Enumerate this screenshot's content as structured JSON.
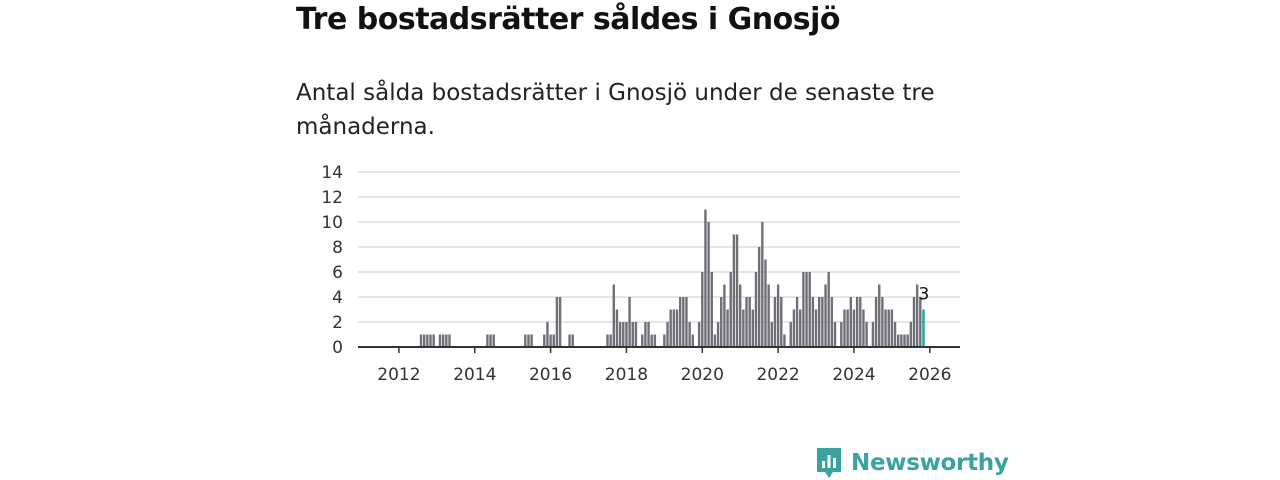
{
  "title": "Tre bostadsrätter såldes i Gnosjö",
  "subtitle": "Antal sålda bostadsrätter i Gnosjö under de senaste tre månaderna.",
  "brand": {
    "name": "Newsworthy",
    "color": "#3aa3a0"
  },
  "colors": {
    "bar": "#6f6f78",
    "highlight": "#19a39a",
    "grid": "#dddddd",
    "axis": "#333333"
  },
  "chart_data": {
    "type": "bar",
    "title": "Tre bostadsrätter såldes i Gnosjö",
    "xlabel": "",
    "ylabel": "",
    "ylim": [
      0,
      14
    ],
    "yticks": [
      0,
      2,
      4,
      6,
      8,
      10,
      12,
      14
    ],
    "xticks": [
      2012,
      2014,
      2016,
      2018,
      2020,
      2022,
      2024,
      2026
    ],
    "start": "2011-01",
    "frequency": "monthly",
    "values": [
      0,
      0,
      0,
      0,
      0,
      0,
      0,
      0,
      0,
      0,
      0,
      0,
      0,
      0,
      0,
      0,
      0,
      0,
      0,
      1,
      1,
      1,
      1,
      1,
      0,
      1,
      1,
      1,
      1,
      0,
      0,
      0,
      0,
      0,
      0,
      0,
      0,
      0,
      0,
      0,
      1,
      1,
      1,
      0,
      0,
      0,
      0,
      0,
      0,
      0,
      0,
      0,
      1,
      1,
      1,
      0,
      0,
      0,
      1,
      2,
      1,
      1,
      4,
      4,
      0,
      0,
      1,
      1,
      0,
      0,
      0,
      0,
      0,
      0,
      0,
      0,
      0,
      0,
      1,
      1,
      5,
      3,
      2,
      2,
      2,
      4,
      2,
      2,
      0,
      1,
      2,
      2,
      1,
      1,
      0,
      0,
      1,
      2,
      3,
      3,
      3,
      4,
      4,
      4,
      2,
      1,
      0,
      2,
      6,
      11,
      10,
      6,
      1,
      2,
      4,
      5,
      3,
      6,
      9,
      9,
      5,
      3,
      4,
      4,
      3,
      6,
      8,
      10,
      7,
      5,
      2,
      4,
      5,
      4,
      1,
      0,
      2,
      3,
      4,
      3,
      6,
      6,
      6,
      4,
      3,
      4,
      4,
      5,
      6,
      4,
      2,
      0,
      2,
      3,
      3,
      4,
      3,
      4,
      4,
      3,
      2,
      0,
      2,
      4,
      5,
      4,
      3,
      3,
      3,
      2,
      1,
      1,
      1,
      1,
      2,
      4,
      5,
      4,
      3
    ],
    "highlight_last": true,
    "last_value_label": "3"
  }
}
